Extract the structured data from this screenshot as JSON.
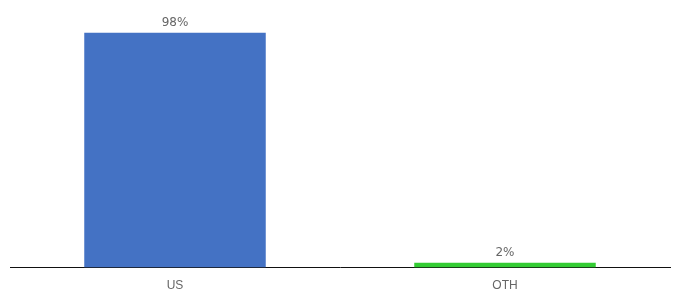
{
  "chart_data": {
    "type": "bar",
    "categories": [
      "US",
      "OTH"
    ],
    "values": [
      98,
      2
    ],
    "value_labels": [
      "98%",
      "2%"
    ],
    "colors": [
      "#4472c4",
      "#33cc33"
    ],
    "ylim": [
      0,
      100
    ],
    "grid": false,
    "data_labels": true,
    "tick_labels": "x"
  }
}
